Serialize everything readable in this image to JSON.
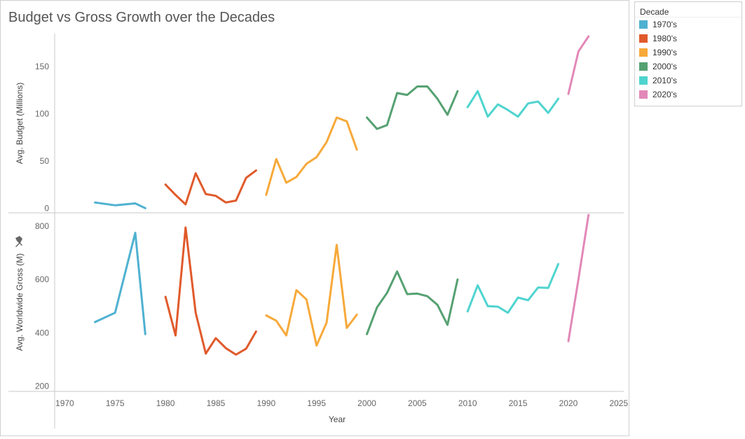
{
  "chart_data": {
    "title": "Budget vs Gross Growth over the Decades",
    "type": "line",
    "xlabel": "Year",
    "x_ticks": [
      1970,
      1975,
      1980,
      1985,
      1990,
      1995,
      2000,
      2005,
      2010,
      2015,
      2020,
      2025
    ],
    "xlim": [
      1969,
      2025.5
    ],
    "legend": {
      "title": "Decade",
      "position": "right",
      "items": [
        {
          "name": "1970's",
          "color": "#4fb1d1"
        },
        {
          "name": "1980's",
          "color": "#e05a2b"
        },
        {
          "name": "1990's",
          "color": "#f7a93a"
        },
        {
          "name": "2000's",
          "color": "#56a172"
        },
        {
          "name": "2010's",
          "color": "#4fd4cf"
        },
        {
          "name": "2020's",
          "color": "#e288b8"
        }
      ]
    },
    "panels": [
      {
        "ylabel": "Avg. Budget (Millions)",
        "ylim": [
          -5,
          185
        ],
        "y_ticks": [
          0,
          50,
          100,
          150
        ],
        "series": [
          {
            "name": "1970's",
            "x": [
              1973,
              1975,
              1977,
              1978
            ],
            "y": [
              6,
              3,
              5,
              0
            ]
          },
          {
            "name": "1980's",
            "x": [
              1980,
              1981,
              1982,
              1983,
              1984,
              1985,
              1986,
              1987,
              1988,
              1989
            ],
            "y": [
              25,
              14,
              4,
              37,
              15,
              13,
              6,
              8,
              32,
              40
            ]
          },
          {
            "name": "1990's",
            "x": [
              1990,
              1991,
              1992,
              1993,
              1994,
              1995,
              1996,
              1997,
              1998,
              1999
            ],
            "y": [
              14,
              52,
              27,
              33,
              47,
              54,
              70,
              96,
              92,
              62
            ]
          },
          {
            "name": "2000's",
            "x": [
              2000,
              2001,
              2002,
              2003,
              2004,
              2005,
              2006,
              2007,
              2008,
              2009
            ],
            "y": [
              96,
              84,
              88,
              122,
              120,
              129,
              129,
              116,
              99,
              124
            ]
          },
          {
            "name": "2010's",
            "x": [
              2010,
              2011,
              2012,
              2013,
              2014,
              2015,
              2016,
              2017,
              2018,
              2019
            ],
            "y": [
              107,
              124,
              97,
              110,
              104,
              97,
              111,
              113,
              101,
              116
            ]
          },
          {
            "name": "2020's",
            "x": [
              2020,
              2021,
              2022
            ],
            "y": [
              121,
              166,
              182
            ]
          }
        ]
      },
      {
        "ylabel": "Avg. Worldwide Gross (M)",
        "ylim": [
          180,
          850
        ],
        "y_ticks": [
          200,
          400,
          600,
          800
        ],
        "series": [
          {
            "name": "1970's",
            "x": [
              1973,
              1975,
              1977,
              1978
            ],
            "y": [
              440,
              475,
              775,
              395
            ]
          },
          {
            "name": "1980's",
            "x": [
              1980,
              1981,
              1982,
              1983,
              1984,
              1985,
              1986,
              1987,
              1988,
              1989
            ],
            "y": [
              535,
              390,
              795,
              475,
              322,
              380,
              342,
              318,
              340,
              405
            ]
          },
          {
            "name": "1990's",
            "x": [
              1990,
              1991,
              1992,
              1993,
              1994,
              1995,
              1996,
              1997,
              1998,
              1999
            ],
            "y": [
              465,
              445,
              390,
              560,
              525,
              352,
              438,
              730,
              418,
              468
            ]
          },
          {
            "name": "2000's",
            "x": [
              2000,
              2001,
              2002,
              2003,
              2004,
              2005,
              2006,
              2007,
              2008,
              2009
            ],
            "y": [
              395,
              495,
              550,
              630,
              545,
              547,
              537,
              505,
              430,
              600
            ]
          },
          {
            "name": "2010's",
            "x": [
              2010,
              2011,
              2012,
              2013,
              2014,
              2015,
              2016,
              2017,
              2018,
              2019
            ],
            "y": [
              480,
              578,
              500,
              498,
              475,
              532,
              522,
              570,
              568,
              658
            ]
          },
          {
            "name": "2020's",
            "x": [
              2020,
              2021,
              2022
            ],
            "y": [
              368,
              600,
              842
            ]
          }
        ]
      }
    ]
  }
}
